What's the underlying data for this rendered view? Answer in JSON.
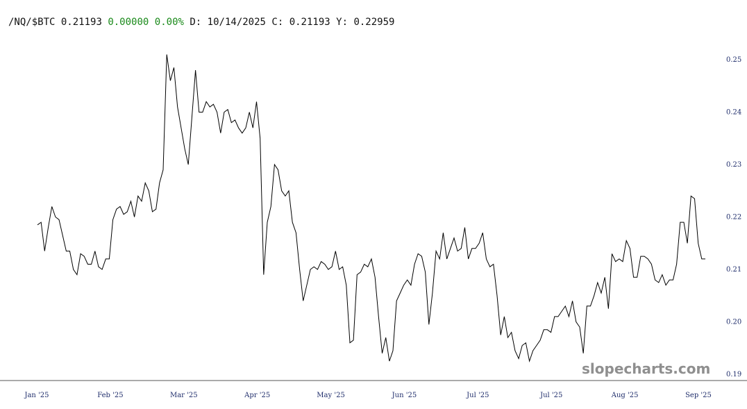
{
  "header": {
    "symbol": "/NQ/$BTC",
    "last": "0.21193",
    "change": "0.00000",
    "change_pct": "0.00%",
    "date_label": "D:",
    "date": "10/14/2025",
    "close_label": "C:",
    "close": "0.21193",
    "y_label": "Y:",
    "y_value": "0.22959",
    "change_color": "#1a8a1a"
  },
  "watermark": "slopecharts.com",
  "chart_data": {
    "type": "line",
    "title": "",
    "xlabel": "",
    "ylabel": "",
    "ylim": [
      0.19,
      0.251
    ],
    "y_ticks": [
      "0.25",
      "0.24",
      "0.23",
      "0.22",
      "0.21",
      "0.20",
      "0.19"
    ],
    "x_tick_labels": [
      "Jan '25",
      "Feb '25",
      "Mar '25",
      "Apr '25",
      "May '25",
      "Jun '25",
      "Jul '25",
      "Jul '25",
      "Aug '25",
      "Sep '25"
    ],
    "line_color": "#000000",
    "series": [
      {
        "values": [
          0.2185,
          0.219,
          0.2135,
          0.218,
          0.222,
          0.22,
          0.2195,
          0.2165,
          0.2135,
          0.2135,
          0.21,
          0.209,
          0.213,
          0.2125,
          0.211,
          0.211,
          0.2135,
          0.2105,
          0.21,
          0.212,
          0.212,
          0.2195,
          0.2215,
          0.222,
          0.2205,
          0.221,
          0.223,
          0.22,
          0.224,
          0.223,
          0.2265,
          0.225,
          0.221,
          0.2215,
          0.2265,
          0.229,
          0.251,
          0.246,
          0.2485,
          0.241,
          0.237,
          0.233,
          0.23,
          0.239,
          0.248,
          0.24,
          0.24,
          0.242,
          0.241,
          0.2415,
          0.24,
          0.236,
          0.24,
          0.2405,
          0.238,
          0.2385,
          0.237,
          0.236,
          0.237,
          0.24,
          0.237,
          0.242,
          0.235,
          0.209,
          0.219,
          0.222,
          0.23,
          0.229,
          0.225,
          0.224,
          0.225,
          0.219,
          0.217,
          0.21,
          0.204,
          0.207,
          0.21,
          0.2105,
          0.21,
          0.2115,
          0.211,
          0.21,
          0.2105,
          0.2135,
          0.21,
          0.2105,
          0.207,
          0.196,
          0.1965,
          0.209,
          0.2095,
          0.211,
          0.2105,
          0.212,
          0.2085,
          0.201,
          0.194,
          0.197,
          0.1925,
          0.1945,
          0.204,
          0.2055,
          0.207,
          0.208,
          0.207,
          0.211,
          0.213,
          0.2125,
          0.2095,
          0.1995,
          0.2055,
          0.2135,
          0.212,
          0.217,
          0.212,
          0.214,
          0.216,
          0.2135,
          0.214,
          0.218,
          0.212,
          0.214,
          0.214,
          0.215,
          0.217,
          0.212,
          0.2105,
          0.211,
          0.205,
          0.1975,
          0.201,
          0.197,
          0.198,
          0.1945,
          0.193,
          0.1955,
          0.196,
          0.1925,
          0.1945,
          0.1955,
          0.1965,
          0.1985,
          0.1985,
          0.198,
          0.201,
          0.201,
          0.202,
          0.203,
          0.201,
          0.204,
          0.2,
          0.199,
          0.194,
          0.203,
          0.203,
          0.205,
          0.2075,
          0.2055,
          0.2085,
          0.2025,
          0.213,
          0.2115,
          0.212,
          0.2115,
          0.2155,
          0.214,
          0.2085,
          0.2085,
          0.2125,
          0.2125,
          0.212,
          0.211,
          0.208,
          0.2075,
          0.209,
          0.207,
          0.208,
          0.208,
          0.211,
          0.219,
          0.219,
          0.215,
          0.224,
          0.2235,
          0.215,
          0.212,
          0.212
        ]
      }
    ]
  }
}
